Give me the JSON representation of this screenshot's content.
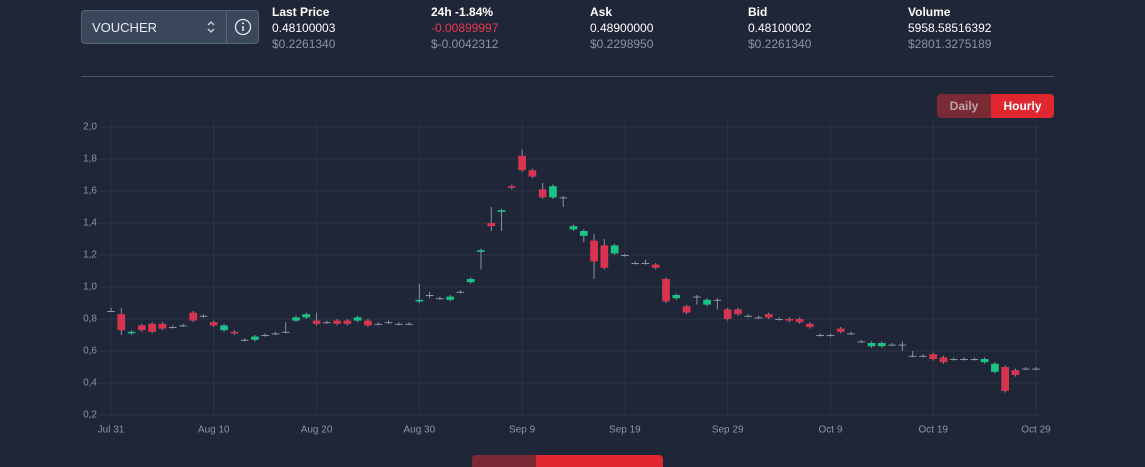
{
  "header": {
    "pair": "VOUCHER",
    "stats": [
      {
        "label": "Last Price",
        "value": "0.48100003",
        "usd": "$0.2261340"
      },
      {
        "label": "24h",
        "change": "-1.84%",
        "value": "-0.00899997",
        "usd": "$-0.0042312"
      },
      {
        "label": "Ask",
        "value": "0.48900000",
        "usd": "$0.2298950"
      },
      {
        "label": "Bid",
        "value": "0.48100002",
        "usd": "$0.2261340"
      },
      {
        "label": "Volume",
        "value": "5958.58516392",
        "usd": "$2801.3275189"
      }
    ],
    "intervals": [
      "Daily",
      "Hourly"
    ]
  },
  "chart_data": {
    "type": "candlestick",
    "up_color": "#19c586",
    "down_color": "#d9344f",
    "grid": true,
    "x": [
      0,
      1,
      2,
      3,
      4,
      5,
      6,
      7,
      8,
      9,
      10,
      11,
      12,
      13,
      14,
      15,
      16,
      17,
      18,
      19,
      20,
      21,
      22,
      23,
      24,
      25,
      26,
      27,
      28,
      29,
      30,
      31,
      32,
      33,
      34,
      35,
      36,
      37,
      38,
      39,
      40,
      41,
      42,
      43,
      44,
      45,
      46,
      47,
      48,
      49,
      50,
      51,
      52,
      53,
      54,
      55,
      56,
      57,
      58,
      59,
      60,
      61,
      62,
      63,
      64,
      65,
      66,
      67,
      68,
      69,
      70,
      71,
      72,
      73,
      74,
      75,
      76,
      77,
      78,
      79,
      80,
      81,
      82,
      83,
      84,
      85,
      86,
      87,
      88,
      89,
      90
    ],
    "open": [
      0.85,
      0.83,
      0.71,
      0.76,
      0.77,
      0.77,
      0.75,
      0.76,
      0.84,
      0.82,
      0.78,
      0.73,
      0.72,
      0.67,
      0.67,
      0.7,
      0.71,
      0.72,
      0.79,
      0.81,
      0.79,
      0.78,
      0.79,
      0.79,
      0.79,
      0.79,
      0.77,
      0.78,
      0.77,
      0.77,
      0.91,
      0.95,
      0.93,
      0.92,
      0.97,
      1.03,
      1.22,
      1.4,
      1.47,
      1.63,
      1.82,
      1.73,
      1.61,
      1.56,
      1.56,
      1.36,
      1.32,
      1.29,
      1.26,
      1.21,
      1.2,
      1.15,
      1.15,
      1.14,
      1.05,
      0.93,
      0.88,
      0.94,
      0.89,
      0.92,
      0.86,
      0.86,
      0.82,
      0.81,
      0.83,
      0.8,
      0.8,
      0.8,
      0.77,
      0.7,
      0.7,
      0.74,
      0.71,
      0.66,
      0.63,
      0.63,
      0.64,
      0.64,
      0.57,
      0.57,
      0.58,
      0.56,
      0.55,
      0.55,
      0.55,
      0.53,
      0.47,
      0.5,
      0.48,
      0.49,
      0.49
    ],
    "close": [
      0.85,
      0.73,
      0.72,
      0.73,
      0.72,
      0.74,
      0.75,
      0.76,
      0.79,
      0.82,
      0.76,
      0.76,
      0.71,
      0.67,
      0.69,
      0.7,
      0.71,
      0.72,
      0.81,
      0.83,
      0.77,
      0.78,
      0.77,
      0.77,
      0.81,
      0.76,
      0.77,
      0.78,
      0.77,
      0.77,
      0.92,
      0.95,
      0.93,
      0.94,
      0.97,
      1.05,
      1.23,
      1.38,
      1.48,
      1.62,
      1.73,
      1.69,
      1.56,
      1.63,
      1.56,
      1.38,
      1.35,
      1.16,
      1.12,
      1.26,
      1.2,
      1.15,
      1.15,
      1.12,
      0.91,
      0.95,
      0.84,
      0.94,
      0.92,
      0.92,
      0.8,
      0.83,
      0.82,
      0.81,
      0.81,
      0.8,
      0.79,
      0.78,
      0.75,
      0.7,
      0.7,
      0.72,
      0.71,
      0.66,
      0.65,
      0.65,
      0.64,
      0.64,
      0.57,
      0.57,
      0.55,
      0.53,
      0.55,
      0.55,
      0.55,
      0.55,
      0.52,
      0.35,
      0.45,
      0.49,
      0.49
    ],
    "high": [
      0.87,
      0.87,
      0.73,
      0.77,
      0.78,
      0.78,
      0.76,
      0.77,
      0.85,
      0.83,
      0.79,
      0.77,
      0.73,
      0.68,
      0.7,
      0.71,
      0.72,
      0.78,
      0.82,
      0.84,
      0.84,
      0.79,
      0.8,
      0.8,
      0.82,
      0.8,
      0.78,
      0.79,
      0.78,
      0.78,
      1.02,
      0.97,
      0.94,
      0.95,
      0.98,
      1.06,
      1.24,
      1.5,
      1.49,
      1.64,
      1.86,
      1.74,
      1.65,
      1.64,
      1.57,
      1.39,
      1.36,
      1.33,
      1.3,
      1.27,
      1.21,
      1.16,
      1.17,
      1.15,
      1.06,
      0.96,
      0.89,
      0.95,
      0.93,
      0.93,
      0.87,
      0.87,
      0.83,
      0.82,
      0.84,
      0.81,
      0.81,
      0.81,
      0.78,
      0.71,
      0.71,
      0.75,
      0.72,
      0.67,
      0.66,
      0.66,
      0.65,
      0.66,
      0.6,
      0.58,
      0.59,
      0.57,
      0.56,
      0.56,
      0.56,
      0.56,
      0.53,
      0.51,
      0.49,
      0.5,
      0.5
    ],
    "low": [
      0.85,
      0.7,
      0.7,
      0.72,
      0.71,
      0.73,
      0.74,
      0.75,
      0.78,
      0.81,
      0.75,
      0.72,
      0.7,
      0.66,
      0.66,
      0.69,
      0.7,
      0.71,
      0.78,
      0.8,
      0.76,
      0.77,
      0.76,
      0.76,
      0.78,
      0.75,
      0.76,
      0.77,
      0.76,
      0.76,
      0.9,
      0.93,
      0.92,
      0.91,
      0.96,
      1.02,
      1.11,
      1.35,
      1.35,
      1.61,
      1.72,
      1.68,
      1.55,
      1.55,
      1.5,
      1.35,
      1.28,
      1.05,
      1.11,
      1.2,
      1.19,
      1.14,
      1.14,
      1.11,
      0.9,
      0.92,
      0.83,
      0.89,
      0.88,
      0.86,
      0.79,
      0.82,
      0.81,
      0.8,
      0.8,
      0.79,
      0.78,
      0.77,
      0.74,
      0.69,
      0.69,
      0.71,
      0.7,
      0.65,
      0.62,
      0.62,
      0.63,
      0.6,
      0.56,
      0.56,
      0.54,
      0.52,
      0.54,
      0.54,
      0.54,
      0.52,
      0.46,
      0.34,
      0.44,
      0.48,
      0.48
    ],
    "xlim": [
      0,
      90
    ],
    "xticks": [
      {
        "value": 0,
        "label": "Jul 31"
      },
      {
        "value": 10,
        "label": "Aug 10"
      },
      {
        "value": 20,
        "label": "Aug 20"
      },
      {
        "value": 30,
        "label": "Aug 30"
      },
      {
        "value": 40,
        "label": "Sep 9"
      },
      {
        "value": 50,
        "label": "Sep 19"
      },
      {
        "value": 60,
        "label": "Sep 29"
      },
      {
        "value": 70,
        "label": "Oct 9"
      },
      {
        "value": 80,
        "label": "Oct 19"
      },
      {
        "value": 90,
        "label": "Oct 29"
      }
    ],
    "ylim": [
      0.2,
      2.0
    ],
    "yticks": [
      {
        "value": 0.2,
        "label": "0,2"
      },
      {
        "value": 0.4,
        "label": "0,4"
      },
      {
        "value": 0.6,
        "label": "0,6"
      },
      {
        "value": 0.8,
        "label": "0,8"
      },
      {
        "value": 1.0,
        "label": "1,0"
      },
      {
        "value": 1.2,
        "label": "1,2"
      },
      {
        "value": 1.4,
        "label": "1,4"
      },
      {
        "value": 1.6,
        "label": "1,6"
      },
      {
        "value": 1.8,
        "label": "1,8"
      },
      {
        "value": 2.0,
        "label": "2,0"
      }
    ]
  }
}
